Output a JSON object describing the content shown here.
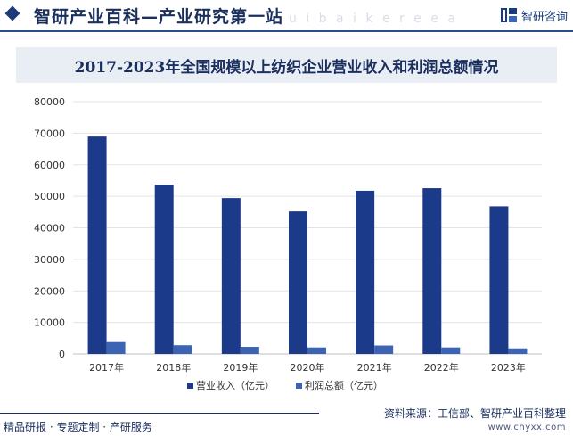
{
  "header": {
    "site_title": "智研产业百科—产业研究第一站",
    "ghost_text": "u  i   b a i k e   r e  e a",
    "brand": "智研咨询"
  },
  "chart_data": {
    "type": "bar",
    "title": "2017-2023年全国规模以上纺织企业营业收入和利润总额情况",
    "categories": [
      "2017年",
      "2018年",
      "2019年",
      "2020年",
      "2021年",
      "2022年",
      "2023年"
    ],
    "series": [
      {
        "name": "营业收入（亿元）",
        "color": "#1b3a8a",
        "values": [
          68935,
          53703,
          49436,
          45191,
          51749,
          52564,
          46810
        ]
      },
      {
        "name": "利润总额（亿元）",
        "color": "#3c64b4",
        "values": [
          3755,
          2767,
          2252,
          2065,
          2677,
          2073,
          1766
        ]
      }
    ],
    "ylim": [
      0,
      80000
    ],
    "yticks": [
      "0",
      "10000",
      "20000",
      "30000",
      "40000",
      "50000",
      "60000",
      "70000",
      "80000"
    ],
    "grid": true,
    "legend": "bottom"
  },
  "footer": {
    "left": "精品研报 · 专题定制 · 产研服务",
    "source": "资料来源：工信部、智研产业百科整理",
    "url": "www.chyxx.com"
  }
}
